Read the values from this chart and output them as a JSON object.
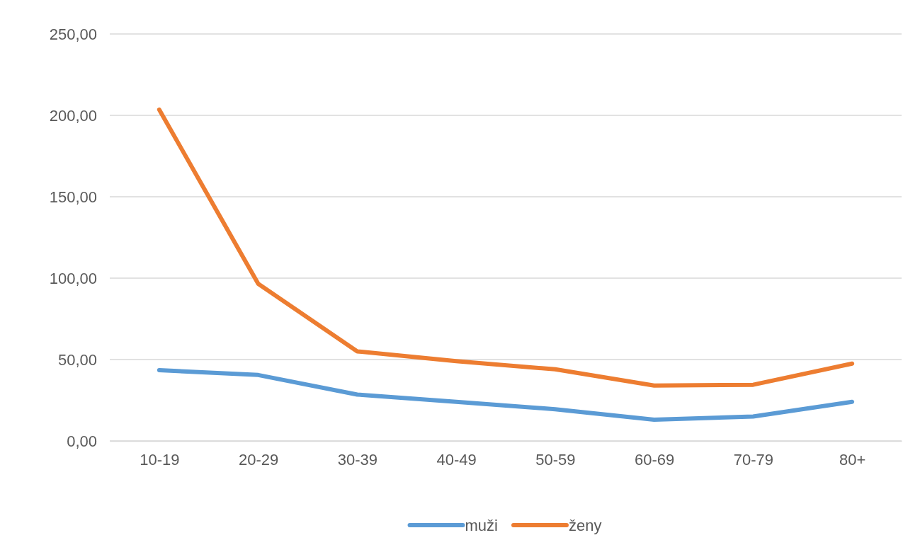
{
  "chart_data": {
    "type": "line",
    "categories": [
      "10-19",
      "20-29",
      "30-39",
      "40-49",
      "50-59",
      "60-69",
      "70-79",
      "80+"
    ],
    "series": [
      {
        "name": "muži",
        "color": "#5b9bd5",
        "values": [
          43.5,
          40.5,
          28.5,
          24,
          19.5,
          13,
          15,
          24
        ]
      },
      {
        "name": "ženy",
        "color": "#ed7d31",
        "values": [
          203.5,
          96.5,
          55,
          49,
          44,
          34,
          34.5,
          47.5
        ]
      }
    ],
    "ylim": [
      0,
      250
    ],
    "yticks": [
      {
        "value": 0,
        "label": "0,00"
      },
      {
        "value": 50,
        "label": "50,00"
      },
      {
        "value": 100,
        "label": "100,00"
      },
      {
        "value": 150,
        "label": "150,00"
      },
      {
        "value": 200,
        "label": "200,00"
      },
      {
        "value": 250,
        "label": "250,00"
      }
    ],
    "grid": "y",
    "legend": "bottom",
    "marker": "none",
    "line_style": "solid"
  }
}
